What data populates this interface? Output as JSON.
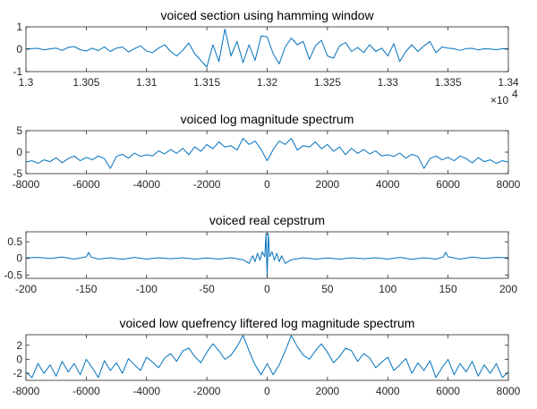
{
  "chart_data": [
    {
      "type": "line",
      "title": "voiced section using hamming window",
      "xlabel": "",
      "ylabel": "",
      "xlim": [
        13000,
        13400
      ],
      "ylim": [
        -1,
        1
      ],
      "x_ticks": [
        13000,
        13050,
        13100,
        13150,
        13200,
        13250,
        13300,
        13350,
        13400
      ],
      "x_tick_labels": [
        "1.3",
        "1.305",
        "1.31",
        "1.315",
        "1.32",
        "1.325",
        "1.33",
        "1.335",
        "1.34"
      ],
      "x_exponent_base": "×10",
      "x_exponent_power": "4",
      "y_ticks": [
        1,
        0,
        -1
      ],
      "y_tick_labels": [
        "1",
        "0",
        "-1"
      ],
      "grid": false,
      "line_color": "#0072BD",
      "series": [
        {
          "x": [
            13000,
            13005,
            13010,
            13015,
            13020,
            13025,
            13030,
            13035,
            13040,
            13045,
            13050,
            13055,
            13060,
            13065,
            13070,
            13075,
            13080,
            13085,
            13090,
            13095,
            13100,
            13105,
            13110,
            13115,
            13120,
            13125,
            13130,
            13135,
            13140,
            13145,
            13150,
            13155,
            13160,
            13165,
            13170,
            13175,
            13180,
            13185,
            13190,
            13195,
            13200,
            13205,
            13210,
            13215,
            13220,
            13225,
            13230,
            13235,
            13240,
            13245,
            13250,
            13255,
            13260,
            13265,
            13270,
            13275,
            13280,
            13285,
            13290,
            13295,
            13300,
            13305,
            13310,
            13315,
            13320,
            13325,
            13330,
            13335,
            13340,
            13345,
            13350,
            13355,
            13360,
            13365,
            13370,
            13375,
            13380,
            13385,
            13390,
            13395,
            13400
          ],
          "values": [
            0.02,
            0.03,
            0.04,
            -0.03,
            0.02,
            0.05,
            -0.05,
            0.08,
            0.12,
            -0.02,
            -0.08,
            0.05,
            -0.06,
            0.1,
            -0.1,
            0.05,
            0.1,
            -0.12,
            0.03,
            0.15,
            -0.08,
            -0.15,
            0.05,
            0.2,
            -0.1,
            -0.3,
            -0.05,
            0.28,
            -0.2,
            -0.5,
            -0.8,
            0.2,
            -0.55,
            0.9,
            -0.3,
            0.35,
            -0.6,
            0.2,
            -0.5,
            0.6,
            0.55,
            -0.2,
            -0.65,
            0.1,
            0.5,
            0.2,
            0.35,
            -0.45,
            0.15,
            0.4,
            -0.3,
            -0.4,
            0.15,
            0.3,
            -0.1,
            0.08,
            -0.15,
            0.2,
            -0.1,
            0.05,
            -0.3,
            0.25,
            -0.55,
            -0.1,
            0.2,
            -0.1,
            0.15,
            0.35,
            -0.15,
            0.1,
            0.05,
            0.02,
            -0.05,
            0.03,
            0.04,
            -0.03,
            0.02,
            0.01,
            -0.02,
            0.02,
            0.02
          ]
        }
      ]
    },
    {
      "type": "line",
      "title": "voiced log magnitude spectrum",
      "xlabel": "",
      "ylabel": "",
      "xlim": [
        -8000,
        8000
      ],
      "ylim": [
        -5,
        5
      ],
      "x_ticks": [
        -8000,
        -6000,
        -4000,
        -2000,
        0,
        2000,
        4000,
        6000,
        8000
      ],
      "x_tick_labels": [
        "-8000",
        "-6000",
        "-4000",
        "-2000",
        "0",
        "2000",
        "4000",
        "6000",
        "8000"
      ],
      "y_ticks": [
        5,
        0,
        -5
      ],
      "y_tick_labels": [
        "5",
        "0",
        "-5"
      ],
      "grid": false,
      "line_color": "#0072BD",
      "series": [
        {
          "x": [
            -8000,
            -7800,
            -7600,
            -7400,
            -7200,
            -7000,
            -6800,
            -6600,
            -6400,
            -6200,
            -6000,
            -5800,
            -5600,
            -5400,
            -5200,
            -5000,
            -4800,
            -4600,
            -4400,
            -4200,
            -4000,
            -3800,
            -3600,
            -3400,
            -3200,
            -3000,
            -2800,
            -2600,
            -2400,
            -2200,
            -2000,
            -1800,
            -1600,
            -1400,
            -1200,
            -1000,
            -800,
            -600,
            -400,
            -200,
            0,
            200,
            400,
            600,
            800,
            1000,
            1200,
            1400,
            1600,
            1800,
            2000,
            2200,
            2400,
            2600,
            2800,
            3000,
            3200,
            3400,
            3600,
            3800,
            4000,
            4200,
            4400,
            4600,
            4800,
            5000,
            5200,
            5400,
            5600,
            5800,
            6000,
            6200,
            6400,
            6600,
            6800,
            7000,
            7200,
            7400,
            7600,
            7800,
            8000
          ],
          "values": [
            -2.3,
            -2.0,
            -2.6,
            -1.8,
            -2.2,
            -1.3,
            -2.5,
            -1.5,
            -0.9,
            -2.0,
            -1.2,
            -1.8,
            -0.9,
            -1.5,
            -3.8,
            -1.0,
            -0.5,
            -1.4,
            -0.2,
            -1.0,
            -0.6,
            -0.9,
            0.3,
            -0.4,
            0.6,
            -0.3,
            0.9,
            -0.6,
            1.2,
            0.2,
            1.8,
            0.8,
            2.4,
            1.2,
            1.5,
            0.5,
            3.2,
            1.8,
            2.6,
            0.6,
            -2.0,
            0.6,
            2.6,
            1.8,
            3.2,
            0.5,
            1.5,
            1.2,
            2.4,
            0.8,
            1.8,
            0.2,
            1.2,
            -0.6,
            0.9,
            -0.3,
            0.6,
            -0.4,
            0.3,
            -0.9,
            -0.6,
            -1.0,
            -0.2,
            -1.4,
            -0.5,
            -1.0,
            -3.8,
            -1.5,
            -0.9,
            -1.8,
            -1.2,
            -2.0,
            -0.9,
            -1.5,
            -2.5,
            -1.3,
            -2.2,
            -1.8,
            -2.6,
            -2.0,
            -2.3
          ]
        }
      ]
    },
    {
      "type": "line",
      "title": "voiced real cepstrum",
      "xlabel": "",
      "ylabel": "",
      "xlim": [
        -200,
        200
      ],
      "ylim": [
        -0.6,
        0.8
      ],
      "x_ticks": [
        -200,
        -150,
        -100,
        -50,
        0,
        50,
        100,
        150,
        200
      ],
      "x_tick_labels": [
        "-200",
        "-150",
        "-100",
        "-50",
        "0",
        "50",
        "100",
        "150",
        "200"
      ],
      "y_ticks": [
        0.5,
        0,
        -0.5
      ],
      "y_tick_labels": [
        "0.5",
        "0",
        "-0.5"
      ],
      "grid": false,
      "line_color": "#0072BD",
      "series": [
        {
          "x": [
            -200,
            -190,
            -180,
            -170,
            -160,
            -150,
            -148,
            -146,
            -140,
            -130,
            -120,
            -110,
            -100,
            -90,
            -80,
            -70,
            -60,
            -50,
            -40,
            -30,
            -20,
            -15,
            -12,
            -10,
            -8,
            -6,
            -4,
            -2,
            -1,
            0,
            1,
            2,
            4,
            6,
            8,
            10,
            12,
            15,
            20,
            30,
            40,
            50,
            60,
            70,
            80,
            90,
            100,
            110,
            120,
            130,
            140,
            146,
            148,
            150,
            160,
            170,
            180,
            190,
            200
          ],
          "values": [
            0.02,
            0.03,
            0.0,
            0.04,
            -0.02,
            0.05,
            0.18,
            0.04,
            -0.02,
            0.02,
            -0.03,
            0.03,
            -0.02,
            0.02,
            -0.01,
            0.02,
            -0.02,
            0.01,
            -0.02,
            0.02,
            -0.04,
            -0.15,
            0.08,
            -0.1,
            0.15,
            -0.05,
            0.2,
            0.05,
            0.75,
            -0.55,
            0.75,
            0.05,
            0.2,
            -0.05,
            0.15,
            -0.1,
            0.08,
            -0.15,
            -0.04,
            0.02,
            -0.02,
            0.01,
            -0.02,
            0.02,
            -0.01,
            0.02,
            -0.02,
            0.03,
            -0.03,
            0.02,
            -0.02,
            0.04,
            0.18,
            0.05,
            -0.02,
            0.04,
            0.0,
            0.03,
            0.02
          ]
        }
      ]
    },
    {
      "type": "line",
      "title": "voiced low quefrency liftered log magnitude spectrum",
      "xlabel": "",
      "ylabel": "",
      "xlim": [
        -8000,
        8000
      ],
      "ylim": [
        -3,
        3.5
      ],
      "x_ticks": [
        -8000,
        -6000,
        -4000,
        -2000,
        0,
        2000,
        4000,
        6000,
        8000
      ],
      "x_tick_labels": [
        "-8000",
        "-6000",
        "-4000",
        "-2000",
        "0",
        "2000",
        "4000",
        "6000",
        "8000"
      ],
      "y_ticks": [
        2,
        0,
        -2
      ],
      "y_tick_labels": [
        "2",
        "0",
        "-2"
      ],
      "grid": false,
      "line_color": "#0072BD",
      "series": [
        {
          "x": [
            -8000,
            -7800,
            -7600,
            -7400,
            -7200,
            -7000,
            -6800,
            -6600,
            -6400,
            -6200,
            -6000,
            -5800,
            -5600,
            -5400,
            -5200,
            -5000,
            -4800,
            -4600,
            -4400,
            -4200,
            -4000,
            -3800,
            -3600,
            -3400,
            -3200,
            -3000,
            -2800,
            -2600,
            -2400,
            -2200,
            -2000,
            -1800,
            -1600,
            -1400,
            -1200,
            -1000,
            -800,
            -600,
            -400,
            -200,
            0,
            200,
            400,
            600,
            800,
            1000,
            1200,
            1400,
            1600,
            1800,
            2000,
            2200,
            2400,
            2600,
            2800,
            3000,
            3200,
            3400,
            3600,
            3800,
            4000,
            4200,
            4400,
            4600,
            4800,
            5000,
            5200,
            5400,
            5600,
            5800,
            6000,
            6200,
            6400,
            6600,
            6800,
            7000,
            7200,
            7400,
            7600,
            7800,
            8000
          ],
          "values": [
            -1.8,
            -2.6,
            -0.6,
            -2.0,
            -0.8,
            -2.4,
            -0.3,
            -1.8,
            -0.6,
            -2.2,
            0.0,
            -1.2,
            -2.6,
            -0.2,
            -1.6,
            -0.5,
            -2.0,
            0.1,
            -0.8,
            -1.6,
            0.3,
            -0.4,
            -1.2,
            0.2,
            0.8,
            -0.3,
            1.2,
            1.6,
            0.4,
            -0.5,
            1.0,
            2.2,
            1.2,
            0.0,
            0.6,
            1.8,
            3.4,
            1.2,
            -0.8,
            -2.2,
            -0.6,
            -2.2,
            -0.8,
            1.2,
            3.4,
            1.8,
            0.6,
            0.0,
            1.2,
            2.2,
            1.0,
            -0.5,
            0.4,
            1.6,
            1.2,
            -0.3,
            0.8,
            0.2,
            -1.2,
            -0.4,
            0.3,
            -1.6,
            -0.8,
            0.1,
            -2.0,
            -0.5,
            -1.6,
            -0.2,
            -2.6,
            -1.2,
            0.0,
            -2.2,
            -0.6,
            -1.8,
            -0.3,
            -2.4,
            -0.8,
            -2.0,
            -0.6,
            -2.6,
            -1.8
          ]
        }
      ]
    }
  ]
}
